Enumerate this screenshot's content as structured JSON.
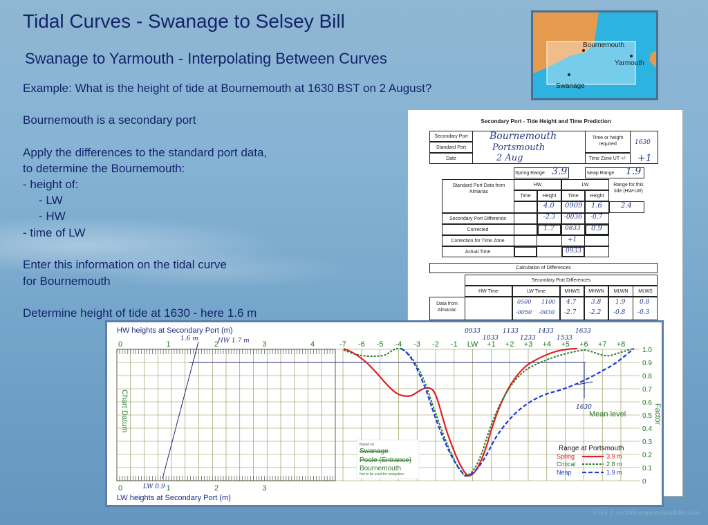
{
  "title": "Tidal Curves - Swanage to Selsey Bill",
  "subtitle": "Swanage to Yarmouth - Interpolating Between Curves",
  "body_lines": [
    "Example:  What is the height of tide at Bournemouth at 1630 BST on 2 August?",
    "Bournemouth is a secondary port",
    "Apply the differences to the standard port data,",
    "to determine the Bournemouth:",
    "-   height of:",
    "-   LW",
    "-   HW",
    "-   time of LW",
    "Enter this information on the tidal curve",
    "for Bournemouth",
    "Determine height of tide at 1630 - here 1.6 m"
  ],
  "map": {
    "labels": {
      "bournemouth": "Bournemouth",
      "yarmouth": "Yarmouth",
      "swanage": "Swanage"
    }
  },
  "form": {
    "title": "Secondary Port - Tide Height and Time Prediction",
    "labels": {
      "secondary_port": "Secondary Port",
      "standard_port": "Standard Port",
      "date": "Date",
      "time_or_height": "Time or height required",
      "time_zone": "Time Zone UT +/-",
      "spring_range": "Spring Range",
      "neap_range": "Neap Range",
      "std_port_data": "Standard Port Data from Almanac",
      "hw": "HW",
      "lw": "LW",
      "time": "Time",
      "height": "Height",
      "range_for_tide": "Range for this tide (HW-LW)",
      "sec_port_diff": "Secondary Port Difference",
      "corrected": "Corrected",
      "correction_tz": "Correction for Time Zone",
      "actual_time": "Actual Time",
      "calc_diff": "Calculation of Differences",
      "sec_port_diffs": "Secondary Port Differences",
      "hw_time": "HW Time",
      "lw_time": "LW Time",
      "mhws": "MHWS",
      "mhwn": "MHWN",
      "mlwn": "MLWN",
      "mlws": "MLWS",
      "data_from_almanac": "Data from Almanac"
    },
    "values": {
      "secondary_port": "Bournemouth",
      "standard_port": "Portsmouth",
      "date": "2 Aug",
      "time_required": "1630",
      "time_zone": "+1",
      "spring_range": "3.9",
      "neap_range": "1.9",
      "hw_height": "4.0",
      "lw_time": "0909",
      "lw_height": "1.6",
      "range": "2.4",
      "diff_hw_height": "-2.3",
      "diff_lw_time": "-0036",
      "diff_lw_height": "-0.7",
      "corr_hw_height": "1.7",
      "corr_lw_time": "0833",
      "corr_lw_height": "0.9",
      "tz_corr": "+1",
      "actual_lw_time": "0933",
      "lw_time_a": "0500",
      "lw_time_b": "1100",
      "mhws": "4.7",
      "mhwn": "3.8",
      "mlwn": "1.9",
      "mlws": "0.8",
      "lw_time_c": "-0050",
      "lw_time_d": "-0030",
      "mhws_d": "-2.7",
      "mhwn_d": "-2.2",
      "mlwn_d": "-0.8",
      "mlws_d": "-0.3"
    }
  },
  "chart": {
    "hw_label": "HW heights at Secondary Port (m)",
    "lw_label": "LW heights at Secondary Port (m)",
    "chart_datum": "Chart Datum",
    "factor": "Factor",
    "mean_level": "Mean level",
    "hw_ticks": [
      "0",
      "1",
      "2",
      "3",
      "4"
    ],
    "lw_ticks": [
      "0",
      "1",
      "2",
      "3"
    ],
    "time_ticks": [
      "-7",
      "-6",
      "-5",
      "-4",
      "-3",
      "-2",
      "-1",
      "LW",
      "+1",
      "+2",
      "+3",
      "+4",
      "+5",
      "+6",
      "+7",
      "+8"
    ],
    "factor_ticks": [
      "1.0",
      "0.9",
      "0.8",
      "0.7",
      "0.6",
      "0.5",
      "0.4",
      "0.3",
      "0.2",
      "0.1",
      "0"
    ],
    "handwritten": {
      "hw_16": "1.6 m",
      "hw_17": "HW 1.7 m",
      "lw_09": "LW  0.9",
      "t0933": "0933",
      "t1133": "1133",
      "t1433": "1433",
      "t1633": "1633",
      "t1033": "1033",
      "t1233": "1233",
      "t1533": "1533",
      "t1630": "1630"
    },
    "legend": {
      "title": "Range at Portsmouth",
      "series": [
        {
          "name": "Spring",
          "value": "3.9 m",
          "color": "#e02020"
        },
        {
          "name": "Critical",
          "value": "2.8 m",
          "color": "#2a7a2a"
        },
        {
          "name": "Neap",
          "value": "1.9 m",
          "color": "#1a3ad8"
        }
      ]
    },
    "ports": {
      "based_on": "Based on",
      "swanage": "Swanage",
      "poole": "Poole (Entrance)",
      "bournemouth": "Bournemouth",
      "note": "Not to be used for navigation"
    }
  },
  "footer": "© O E T Joy 2008 enquiries@sailtrills.co.uk"
}
